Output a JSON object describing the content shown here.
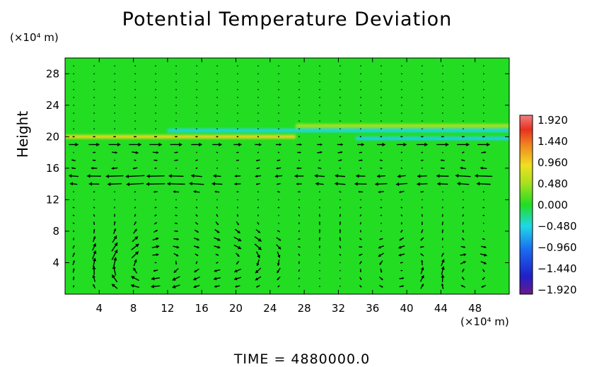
{
  "chart_data": {
    "type": "heatmap",
    "title": "Potential Temperature Deviation",
    "ylabel": "Height",
    "y_units": "(×10⁴ m)",
    "x_units": "(×10⁴ m)",
    "xlim": [
      0,
      52
    ],
    "ylim": [
      0,
      30
    ],
    "x_ticks": [
      4,
      8,
      12,
      16,
      20,
      24,
      28,
      32,
      36,
      40,
      44,
      48
    ],
    "y_ticks": [
      4,
      8,
      12,
      16,
      20,
      24,
      28
    ],
    "colorbar": {
      "min": -1.92,
      "max": 1.92,
      "labels": [
        "1.920",
        "1.440",
        "0.960",
        "0.480",
        "0.000",
        "−0.480",
        "−0.960",
        "−1.440",
        "−1.920"
      ]
    },
    "background_value": 0.0,
    "features": [
      {
        "kind": "band",
        "y": 20.0,
        "x_from": 0,
        "x_to": 27,
        "value": 0.9
      },
      {
        "kind": "band",
        "y": 21.4,
        "x_from": 27,
        "x_to": 52,
        "value": 0.5
      },
      {
        "kind": "band",
        "y": 20.8,
        "x_from": 12,
        "x_to": 52,
        "value": -0.45
      },
      {
        "kind": "band",
        "y": 19.8,
        "x_from": 34,
        "x_to": 52,
        "value": -0.5
      }
    ],
    "vortices": [
      {
        "x": 9,
        "y": 3.5,
        "sense": "cw"
      },
      {
        "x": 21,
        "y": 4.5,
        "sense": "cw"
      },
      {
        "x": 40,
        "y": 3.5,
        "sense": "ccw"
      },
      {
        "x": 47,
        "y": 3.0,
        "sense": "cw"
      }
    ],
    "jets": [
      {
        "y": 14.0,
        "direction": "left"
      },
      {
        "y": 15.0,
        "direction": "left"
      },
      {
        "y": 19.0,
        "direction": "right"
      }
    ]
  },
  "footer": {
    "time_label": "TIME  =  4880000.0"
  },
  "colors": {
    "background_field": "#22dd22",
    "axis": "#000000",
    "arrow": "#000000"
  }
}
